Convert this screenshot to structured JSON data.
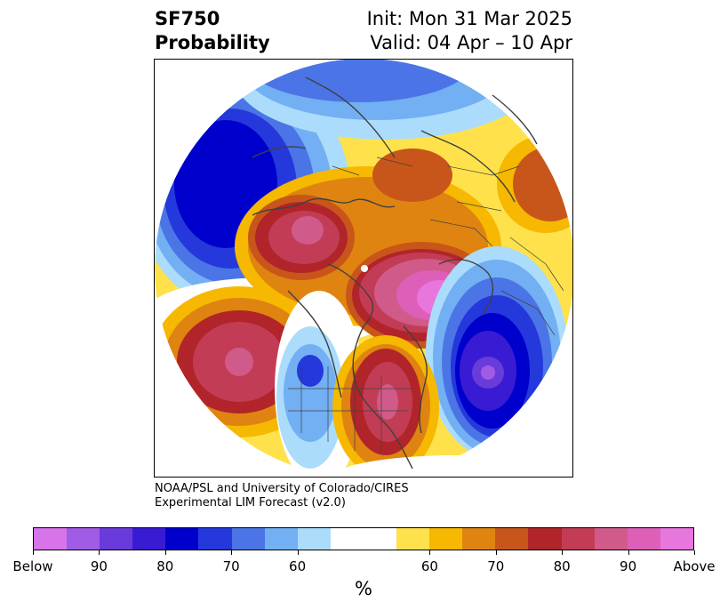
{
  "title": {
    "left_line1": "SF750",
    "left_line2": "Probability",
    "right_line1": "Init: Mon 31 Mar 2025",
    "right_line2": "Valid: 04 Apr – 10 Apr"
  },
  "credit": {
    "line1": "NOAA/PSL and University of Colorado/CIRES",
    "line2": "Experimental LIM Forecast (v2.0)"
  },
  "colorbar": {
    "colors": [
      "#d774ea",
      "#a05ce4",
      "#6a3bdb",
      "#3a1bd4",
      "#0000cc",
      "#2538dc",
      "#4b75e6",
      "#72b0f3",
      "#abdcfb",
      "#ffffff",
      "#ffffff",
      "#ffe24b",
      "#f6b800",
      "#df8410",
      "#c8561a",
      "#b1242a",
      "#c33c55",
      "#d05a89",
      "#de5fb8",
      "#e777dc"
    ],
    "tick_labels": [
      "Below",
      "90",
      "80",
      "70",
      "60",
      "60",
      "70",
      "80",
      "90",
      "Above"
    ],
    "unit": "%"
  }
}
